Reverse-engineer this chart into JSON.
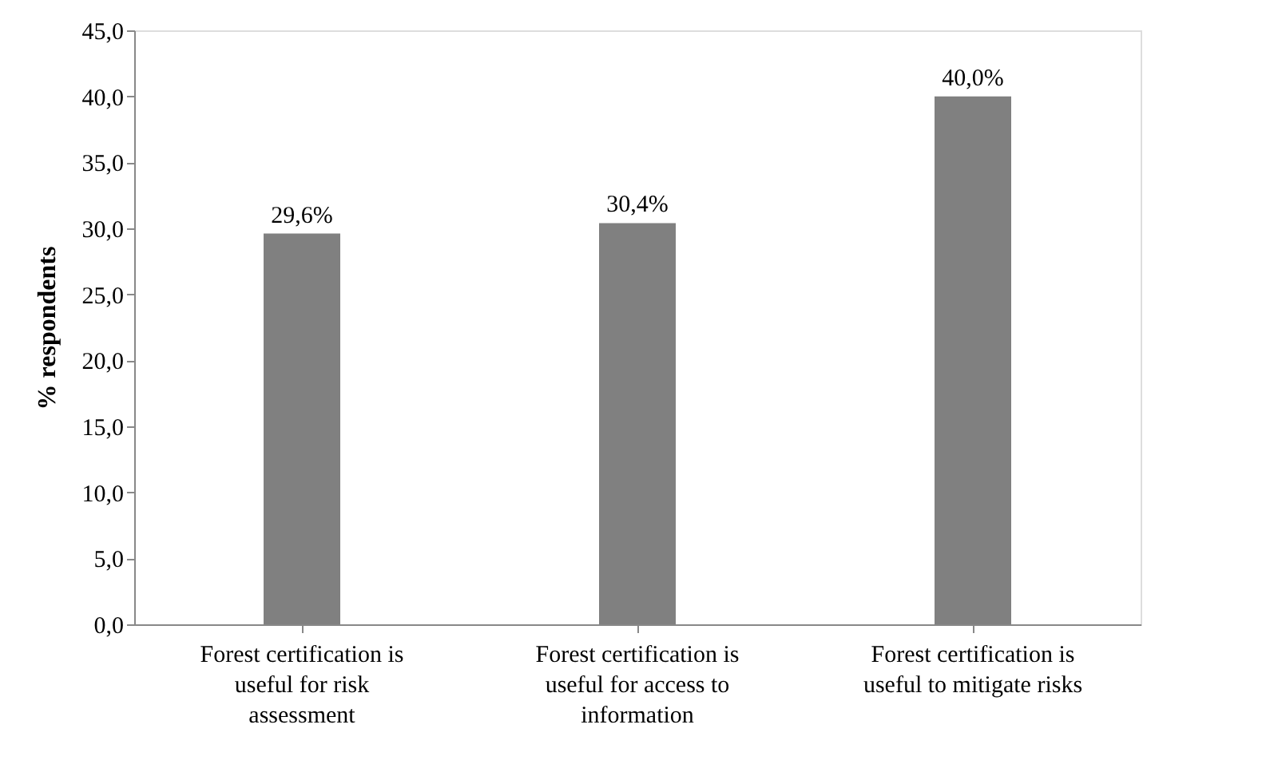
{
  "chart_data": {
    "type": "bar",
    "ylabel": "% respondents",
    "categories": [
      "Forest certification is useful for risk assessment",
      "Forest certification is useful for access to information",
      "Forest certification is useful to mitigate risks"
    ],
    "values": [
      29.6,
      30.4,
      40.0
    ],
    "color": "#808080",
    "value_labels": [
      "29,6%",
      "30,4%",
      "40,0%"
    ],
    "ylim": [
      0,
      45
    ],
    "yticks": [
      {
        "value": 0,
        "label": "0,0"
      },
      {
        "value": 5,
        "label": "5,0"
      },
      {
        "value": 10,
        "label": "10,0"
      },
      {
        "value": 15,
        "label": "15,0"
      },
      {
        "value": 20,
        "label": "20,0"
      },
      {
        "value": 25,
        "label": "25,0"
      },
      {
        "value": 30,
        "label": "30,0"
      },
      {
        "value": 35,
        "label": "35,0"
      },
      {
        "value": 40,
        "label": "40,0"
      },
      {
        "value": 45,
        "label": "45,0"
      }
    ],
    "grid": false
  }
}
